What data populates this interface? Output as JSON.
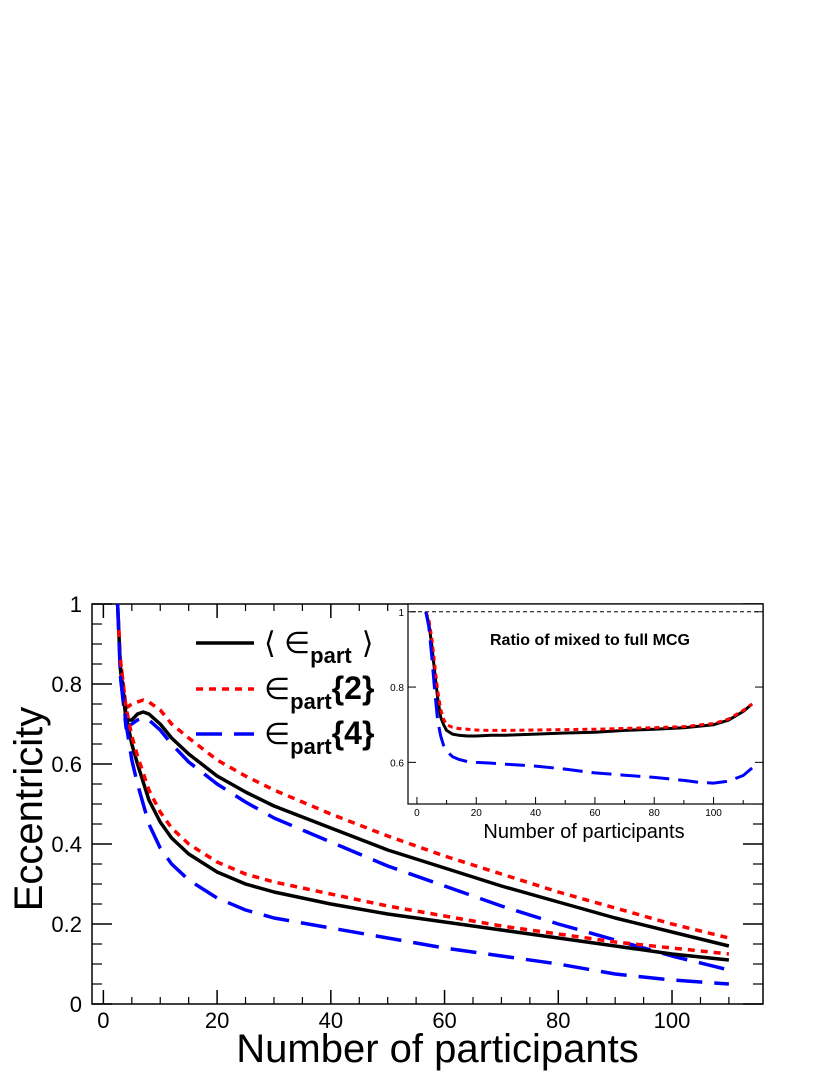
{
  "chart_data": [
    {
      "type": "line",
      "title": "",
      "xlabel": "Number of participants",
      "ylabel": "Eccentricity",
      "xlim": [
        -2,
        116
      ],
      "ylim": [
        0,
        1
      ],
      "xticks": [
        0,
        20,
        40,
        60,
        80,
        100
      ],
      "yticks": [
        0,
        0.2,
        0.4,
        0.6,
        0.8,
        1
      ],
      "xtick_labels": [
        "0",
        "20",
        "40",
        "60",
        "80",
        "100"
      ],
      "ytick_labels": [
        "0",
        "0.2",
        "0.4",
        "0.6",
        "0.8",
        "1"
      ],
      "grid": false,
      "legend": {
        "placement": "top-center",
        "entries": [
          {
            "base": "⟨ ∈",
            "sub": "part",
            "suffix": "⟩",
            "color": "#000000",
            "dash": "solid"
          },
          {
            "base": "∈",
            "sub": "part",
            "suffix": "{2}",
            "color": "#ff0000",
            "dash": "dotted"
          },
          {
            "base": "∈",
            "sub": "part",
            "suffix": "{4}",
            "color": "#0000ff",
            "dash": "dashed"
          }
        ]
      },
      "series": [
        {
          "name": "⟨∈part⟩",
          "color": "#000000",
          "dash": "solid",
          "x": [
            2.5,
            3,
            4,
            5,
            6,
            7,
            8,
            10,
            12,
            15,
            20,
            25,
            30,
            40,
            50,
            60,
            70,
            80,
            90,
            100,
            110
          ],
          "y": [
            1.0,
            0.84,
            0.71,
            0.71,
            0.725,
            0.73,
            0.725,
            0.7,
            0.665,
            0.625,
            0.57,
            0.53,
            0.495,
            0.44,
            0.385,
            0.34,
            0.295,
            0.255,
            0.215,
            0.18,
            0.145
          ]
        },
        {
          "name": "∈part{2}",
          "color": "#ff0000",
          "dash": "dotted",
          "x": [
            2.5,
            3,
            4,
            5,
            6,
            7,
            8,
            10,
            12,
            15,
            20,
            25,
            30,
            40,
            50,
            60,
            70,
            80,
            90,
            100,
            110
          ],
          "y": [
            1.0,
            0.86,
            0.74,
            0.75,
            0.755,
            0.76,
            0.755,
            0.735,
            0.7,
            0.665,
            0.61,
            0.57,
            0.535,
            0.475,
            0.42,
            0.37,
            0.325,
            0.28,
            0.24,
            0.2,
            0.165
          ]
        },
        {
          "name": "∈part{4}",
          "color": "#0000ff",
          "dash": "dashed",
          "x": [
            2.5,
            3,
            4,
            5,
            6,
            7,
            8,
            10,
            12,
            15,
            20,
            25,
            30,
            40,
            50,
            60,
            70,
            80,
            90,
            100,
            110
          ],
          "y": [
            1.0,
            0.82,
            0.69,
            0.7,
            0.71,
            0.715,
            0.71,
            0.685,
            0.65,
            0.605,
            0.55,
            0.505,
            0.465,
            0.405,
            0.345,
            0.295,
            0.245,
            0.2,
            0.16,
            0.12,
            0.085
          ]
        },
        {
          "name": "",
          "color": "#000000",
          "dash": "solid",
          "x": [
            3,
            4,
            5,
            6,
            8,
            10,
            12,
            15,
            20,
            25,
            30,
            40,
            50,
            60,
            70,
            80,
            90,
            100,
            110
          ],
          "y": [
            0.84,
            0.72,
            0.65,
            0.6,
            0.51,
            0.455,
            0.415,
            0.375,
            0.33,
            0.3,
            0.28,
            0.25,
            0.225,
            0.205,
            0.185,
            0.165,
            0.145,
            0.125,
            0.11
          ]
        },
        {
          "name": "",
          "color": "#ff0000",
          "dash": "dotted",
          "x": [
            3,
            4,
            5,
            6,
            8,
            10,
            12,
            15,
            20,
            25,
            30,
            40,
            50,
            60,
            70,
            80,
            90,
            100,
            110
          ],
          "y": [
            0.86,
            0.74,
            0.67,
            0.62,
            0.535,
            0.48,
            0.44,
            0.4,
            0.355,
            0.325,
            0.305,
            0.275,
            0.245,
            0.22,
            0.195,
            0.175,
            0.155,
            0.14,
            0.125
          ]
        },
        {
          "name": "",
          "color": "#0000ff",
          "dash": "dashed",
          "x": [
            3,
            4,
            5,
            6,
            8,
            10,
            12,
            15,
            20,
            25,
            30,
            40,
            50,
            60,
            70,
            80,
            90,
            100,
            110
          ],
          "y": [
            0.82,
            0.7,
            0.61,
            0.55,
            0.45,
            0.39,
            0.35,
            0.31,
            0.265,
            0.235,
            0.215,
            0.19,
            0.165,
            0.14,
            0.12,
            0.1,
            0.075,
            0.06,
            0.05
          ]
        }
      ]
    },
    {
      "type": "line",
      "title": "Ratio of mixed to full MCG",
      "xlabel": "Number of participants",
      "ylabel": "",
      "xlim": [
        -2,
        116
      ],
      "ylim": [
        0.5,
        1.01
      ],
      "xticks": [
        0,
        20,
        40,
        60,
        80,
        100
      ],
      "yticks": [
        0.6,
        0.8,
        1
      ],
      "xtick_labels": [
        "0",
        "20",
        "40",
        "60",
        "80",
        "100"
      ],
      "ytick_labels": [
        "0.6",
        "0.8",
        "1"
      ],
      "reference_line": 1,
      "grid": false,
      "series": [
        {
          "name": "",
          "color": "#000000",
          "dash": "solid",
          "x": [
            3,
            4,
            5,
            6,
            7,
            8,
            9,
            10,
            12,
            14,
            17,
            20,
            25,
            30,
            40,
            50,
            60,
            70,
            80,
            90,
            100,
            105,
            110,
            113
          ],
          "y": [
            1.0,
            0.97,
            0.91,
            0.84,
            0.77,
            0.72,
            0.7,
            0.685,
            0.675,
            0.672,
            0.67,
            0.67,
            0.672,
            0.672,
            0.675,
            0.678,
            0.68,
            0.685,
            0.688,
            0.692,
            0.7,
            0.712,
            0.735,
            0.755
          ]
        },
        {
          "name": "",
          "color": "#ff0000",
          "dash": "dotted",
          "x": [
            3,
            4,
            5,
            6,
            7,
            8,
            9,
            10,
            12,
            14,
            17,
            20,
            25,
            30,
            40,
            50,
            60,
            70,
            80,
            90,
            100,
            105,
            110,
            113
          ],
          "y": [
            1.0,
            0.98,
            0.93,
            0.86,
            0.79,
            0.74,
            0.715,
            0.7,
            0.693,
            0.69,
            0.688,
            0.686,
            0.685,
            0.685,
            0.686,
            0.687,
            0.688,
            0.69,
            0.692,
            0.695,
            0.703,
            0.715,
            0.738,
            0.755
          ]
        },
        {
          "name": "",
          "color": "#0000ff",
          "dash": "dashed",
          "x": [
            3,
            4,
            5,
            6,
            7,
            8,
            9,
            10,
            12,
            14,
            17,
            20,
            25,
            30,
            40,
            50,
            60,
            70,
            80,
            90,
            95,
            100,
            105,
            110,
            113
          ],
          "y": [
            1.0,
            0.96,
            0.88,
            0.79,
            0.71,
            0.67,
            0.645,
            0.63,
            0.615,
            0.608,
            0.602,
            0.6,
            0.598,
            0.595,
            0.59,
            0.582,
            0.572,
            0.566,
            0.56,
            0.552,
            0.547,
            0.545,
            0.55,
            0.565,
            0.585
          ]
        }
      ]
    }
  ]
}
